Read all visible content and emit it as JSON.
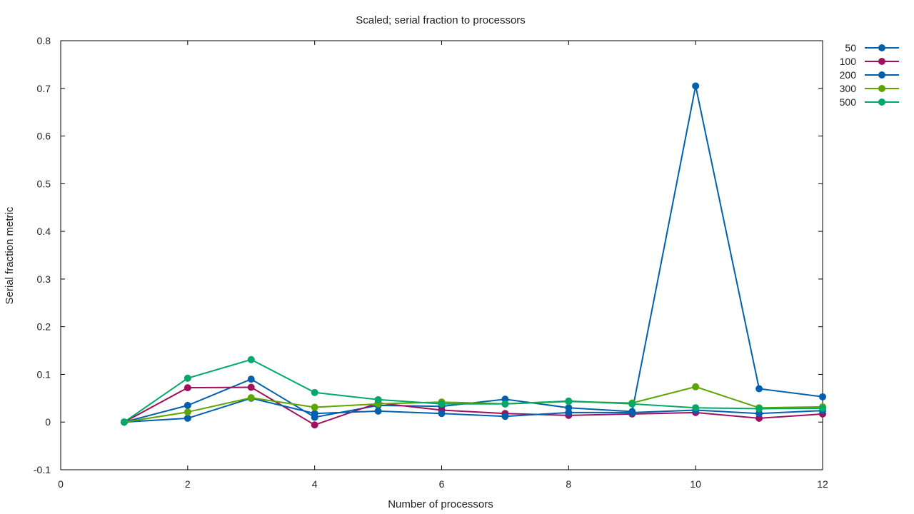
{
  "chart_data": {
    "type": "line",
    "title": "Scaled; serial fraction to processors",
    "xlabel": "Number of processors",
    "ylabel": "Serial fraction metric",
    "xlim": [
      0,
      12
    ],
    "ylim": [
      -0.1,
      0.8
    ],
    "xticks": [
      "0",
      "2",
      "4",
      "6",
      "8",
      "10",
      "12"
    ],
    "yticks": [
      "-0.1",
      "0",
      "0.1",
      "0.2",
      "0.3",
      "0.4",
      "0.5",
      "0.6",
      "0.7",
      "0.8"
    ],
    "grid": false,
    "legend_position": "outside-right-top",
    "x": [
      1,
      2,
      3,
      4,
      5,
      6,
      7,
      8,
      9,
      10,
      11,
      12
    ],
    "series": [
      {
        "name": "50",
        "color": "#0060ad",
        "values": [
          0.0,
          0.035,
          0.09,
          0.01,
          0.035,
          0.033,
          0.048,
          0.03,
          0.022,
          0.705,
          0.07,
          0.053
        ]
      },
      {
        "name": "100",
        "color": "#a0105e",
        "values": [
          0.0,
          0.072,
          0.073,
          -0.006,
          0.04,
          0.025,
          0.018,
          0.014,
          0.017,
          0.02,
          0.008,
          0.017
        ]
      },
      {
        "name": "200",
        "color": "#0060ad",
        "values": [
          0.0,
          0.008,
          0.05,
          0.018,
          0.023,
          0.018,
          0.012,
          0.02,
          0.02,
          0.025,
          0.018,
          0.024
        ]
      },
      {
        "name": "300",
        "color": "#5ea500",
        "values": [
          0.0,
          0.021,
          0.051,
          0.031,
          0.038,
          0.042,
          0.038,
          0.043,
          0.04,
          0.074,
          0.03,
          0.032
        ]
      },
      {
        "name": "500",
        "color": "#00a86a",
        "values": [
          0.0,
          0.092,
          0.131,
          0.062,
          0.047,
          0.038,
          0.038,
          0.044,
          0.038,
          0.03,
          0.028,
          0.029
        ]
      }
    ]
  }
}
